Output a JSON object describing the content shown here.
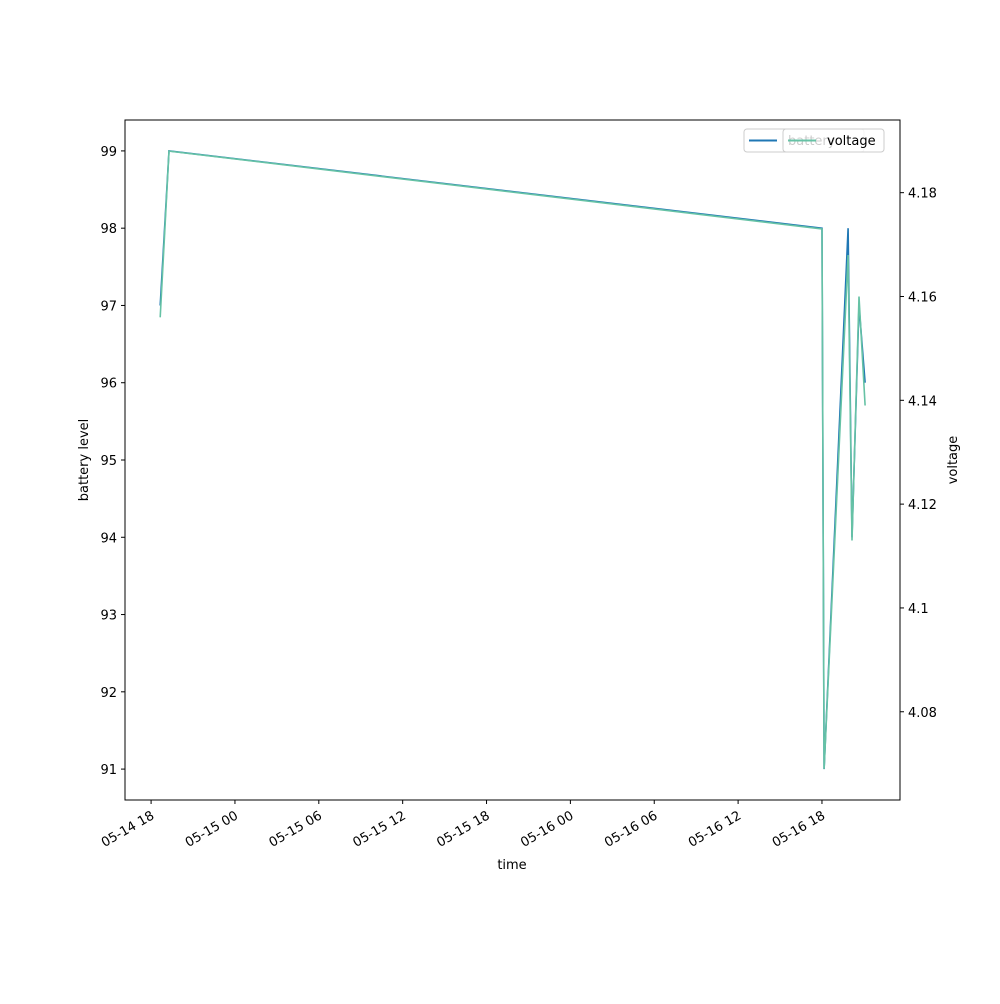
{
  "chart_data": {
    "type": "line",
    "x_label": "time",
    "y_label": "battery level",
    "y2_label": "voltage",
    "x": [
      "05-14 18:39",
      "05-14 19:17",
      "05-16 18:00",
      "05-16 18:09",
      "05-16 19:52",
      "05-16 20:09",
      "05-16 20:39",
      "05-16 21:05"
    ],
    "series": [
      {
        "name": "battery",
        "color": "#1f77b4",
        "values": [
          97,
          99,
          98,
          91,
          98,
          94,
          97,
          96
        ]
      },
      {
        "name": "voltage",
        "color": "#66c2a5",
        "axis": "y2",
        "values": [
          4.156,
          4.188,
          4.173,
          4.069,
          4.168,
          4.113,
          4.16,
          4.139
        ]
      }
    ],
    "xlim": [
      "05-14 16:08",
      "05-16 23:35"
    ],
    "xticks": [
      "05-14 18",
      "05-15 00",
      "05-15 06",
      "05-15 12",
      "05-15 18",
      "05-16 00",
      "05-16 06",
      "05-16 12",
      "05-16 18"
    ],
    "ylim": [
      90.6,
      99.4
    ],
    "yticks": [
      91,
      92,
      93,
      94,
      95,
      96,
      97,
      98,
      99
    ],
    "y2lim": [
      4.063,
      4.194
    ],
    "y2ticks": [
      4.08,
      4.1,
      4.12,
      4.14,
      4.16,
      4.18
    ],
    "legend": "upper right",
    "grid": false
  }
}
